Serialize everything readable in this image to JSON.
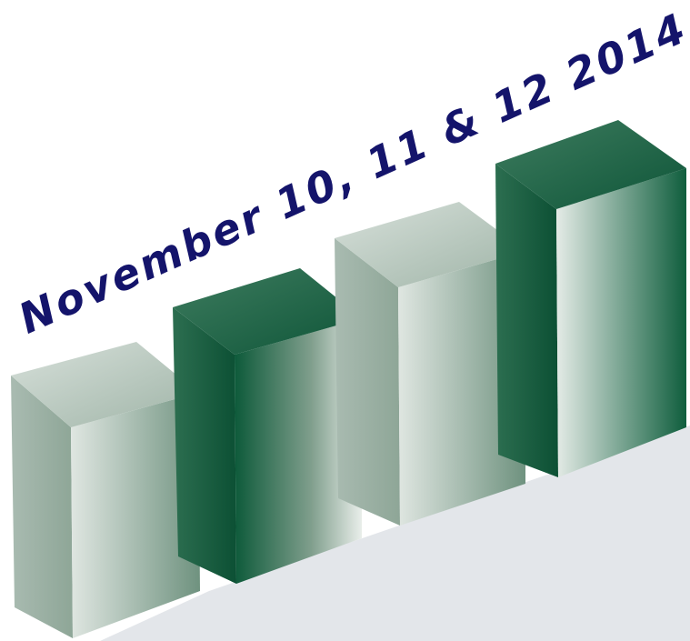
{
  "title": "November 10, 11 & 12 2014"
}
